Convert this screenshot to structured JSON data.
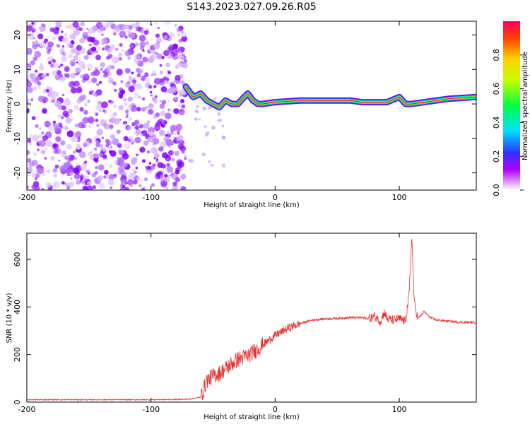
{
  "title": "S143.2023.027.09.26.R05",
  "colors": {
    "signal": "#e63030",
    "background": "#ffffff"
  },
  "chart_data": [
    {
      "type": "heatmap",
      "xlabel": "Height of straight line (km)",
      "ylabel": "Frequency (Hz)",
      "xlim": [
        -200,
        162
      ],
      "ylim": [
        -25,
        24
      ],
      "xticks": [
        -200,
        -100,
        0,
        100
      ],
      "yticks": [
        -20,
        -10,
        0,
        10,
        20
      ],
      "colorbar": {
        "label": "Normalized spectral amplitude",
        "range": [
          0,
          1
        ],
        "ticks": [
          "0.0",
          "0.2",
          "0.4",
          "0.6",
          "0.8"
        ]
      },
      "noise_region_x": [
        -200,
        -72
      ],
      "signal_track": [
        [
          -72,
          5
        ],
        [
          -66,
          2
        ],
        [
          -60,
          3
        ],
        [
          -55,
          1
        ],
        [
          -50,
          0
        ],
        [
          -45,
          -1
        ],
        [
          -40,
          1
        ],
        [
          -35,
          0
        ],
        [
          -30,
          0
        ],
        [
          -25,
          2
        ],
        [
          -22,
          3
        ],
        [
          -18,
          1
        ],
        [
          -14,
          0
        ],
        [
          -10,
          0
        ],
        [
          0,
          0.5
        ],
        [
          20,
          1
        ],
        [
          40,
          1
        ],
        [
          60,
          1
        ],
        [
          70,
          0.5
        ],
        [
          80,
          0.5
        ],
        [
          90,
          0.5
        ],
        [
          100,
          2
        ],
        [
          105,
          0
        ],
        [
          110,
          0
        ],
        [
          120,
          0.5
        ],
        [
          140,
          1.5
        ],
        [
          162,
          2
        ]
      ]
    },
    {
      "type": "line",
      "xlabel": "Height of straight line (km)",
      "ylabel": "SNR (10 * v/v)",
      "xlim": [
        -200,
        162
      ],
      "ylim": [
        0,
        710
      ],
      "xticks": [
        -200,
        -100,
        0,
        100
      ],
      "yticks": [
        0,
        200,
        400,
        600
      ],
      "series": [
        {
          "x": [
            -200,
            -150,
            -100,
            -70,
            -60,
            -55,
            -50,
            -45,
            -40,
            -35,
            -30,
            -25,
            -20,
            -15,
            -10,
            -5,
            0,
            10,
            20,
            30,
            40,
            50,
            60,
            70,
            75,
            80,
            85,
            88,
            90,
            95,
            100,
            105,
            108,
            110,
            112,
            115,
            120,
            125,
            130,
            140,
            150,
            162
          ],
          "y": [
            10,
            10,
            10,
            12,
            20,
            90,
            110,
            120,
            140,
            160,
            180,
            190,
            200,
            220,
            240,
            260,
            280,
            310,
            330,
            345,
            350,
            352,
            355,
            355,
            350,
            360,
            340,
            380,
            350,
            345,
            350,
            340,
            460,
            700,
            420,
            350,
            380,
            355,
            345,
            340,
            335,
            335
          ]
        }
      ]
    }
  ]
}
